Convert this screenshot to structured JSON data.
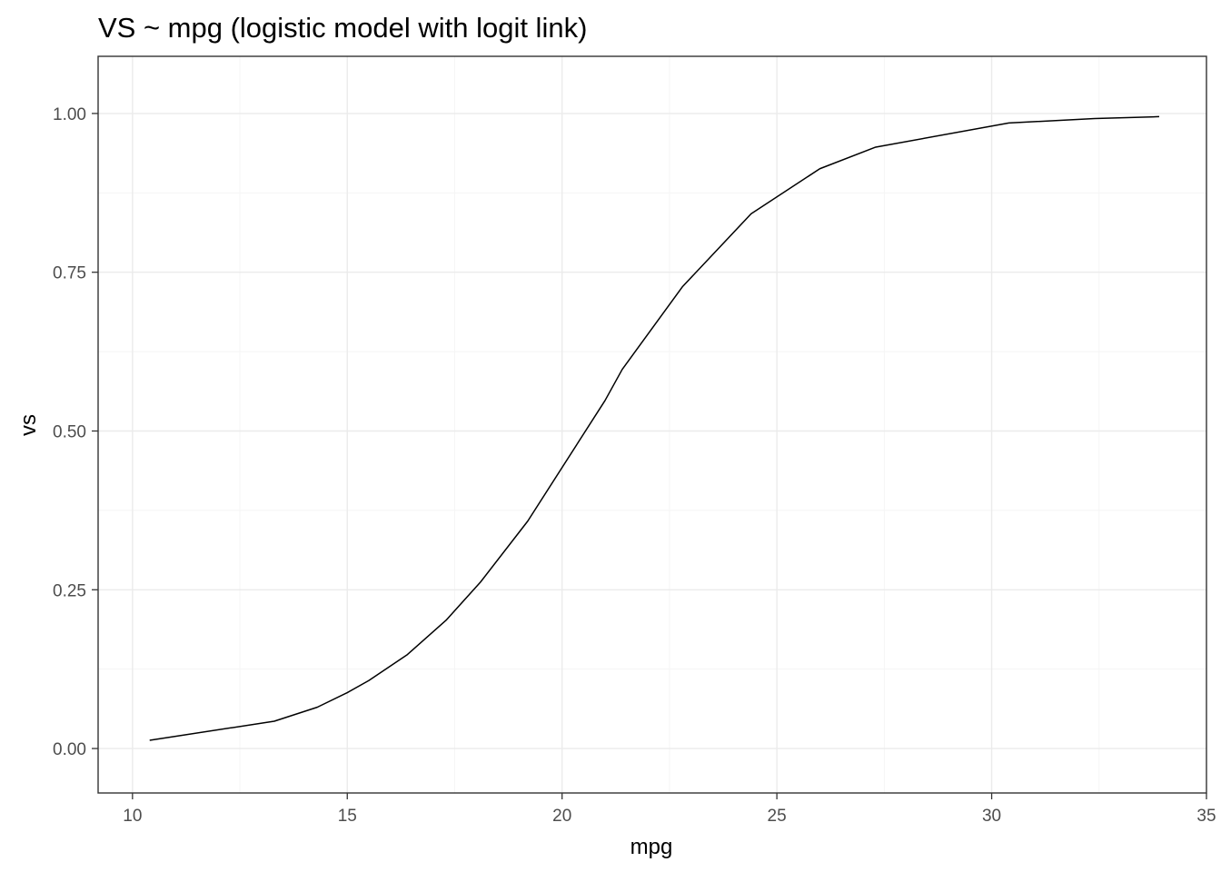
{
  "chart_data": {
    "type": "line",
    "title": "VS ~ mpg (logistic model with logit link)",
    "xlabel": "mpg",
    "ylabel": "vs",
    "xlim": [
      9.2,
      35.0
    ],
    "ylim": [
      -0.07,
      1.09
    ],
    "x_ticks": [
      10,
      15,
      20,
      25,
      30,
      35
    ],
    "y_ticks": [
      0.0,
      0.25,
      0.5,
      0.75,
      1.0
    ],
    "x_tick_labels": [
      "10",
      "15",
      "20",
      "25",
      "30",
      "35"
    ],
    "y_tick_labels": [
      "0.00",
      "0.25",
      "0.50",
      "0.75",
      "1.00"
    ],
    "x_minor_ticks": [
      12.5,
      17.5,
      22.5,
      27.5,
      32.5
    ],
    "y_minor_ticks": [
      0.125,
      0.375,
      0.625,
      0.875
    ],
    "grid": true,
    "legend": "none",
    "series": [
      {
        "line_color": "#000000",
        "x": [
          10.4,
          13.3,
          14.3,
          15.0,
          15.5,
          16.4,
          17.3,
          18.1,
          19.2,
          21.0,
          21.4,
          22.8,
          24.4,
          26.0,
          27.3,
          30.4,
          32.4,
          33.9
        ],
        "y": [
          0.013,
          0.043,
          0.065,
          0.088,
          0.107,
          0.148,
          0.202,
          0.262,
          0.358,
          0.548,
          0.597,
          0.727,
          0.842,
          0.913,
          0.947,
          0.985,
          0.992,
          0.995
        ]
      }
    ],
    "colors": {
      "panel_border": "#333333",
      "grid_major": "#ebebeb",
      "grid_minor": "#f5f5f5",
      "tick": "#333333",
      "tick_label": "#4d4d4d"
    }
  }
}
